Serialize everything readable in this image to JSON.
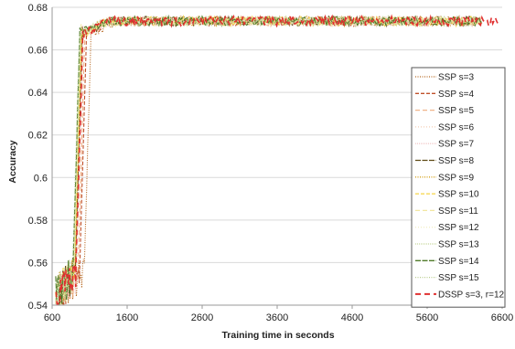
{
  "chart_data": {
    "type": "line",
    "title": "",
    "xlabel": "Training time in seconds",
    "ylabel": "Accuracy",
    "xlim": [
      600,
      6600
    ],
    "ylim": [
      0.54,
      0.68
    ],
    "xticks": [
      600,
      1600,
      2600,
      3600,
      4600,
      5600,
      6600
    ],
    "yticks": [
      0.54,
      0.56,
      0.58,
      0.6,
      0.62,
      0.64,
      0.66,
      0.68
    ],
    "xtick_labels": [
      "600",
      "1600",
      "2600",
      "3600",
      "4600",
      "5600",
      "6600"
    ],
    "ytick_labels": [
      "0.54",
      "0.56",
      "0.58",
      "0.6",
      "0.62",
      "0.64",
      "0.66",
      "0.68"
    ],
    "grid": "horizontal",
    "legend_position": "right",
    "plateau": 0.6735,
    "series": [
      {
        "name": "SSP s=3",
        "color": "#b5651d",
        "dash": "1,1.5",
        "rise_end": 1120,
        "end": 6300
      },
      {
        "name": "SSP s=4",
        "color": "#c0502a",
        "dash": "4,2",
        "rise_end": 1060,
        "end": 6320
      },
      {
        "name": "SSP s=5",
        "color": "#f0b48a",
        "dash": "5,3",
        "rise_end": 1040,
        "end": 6340
      },
      {
        "name": "SSP s=6",
        "color": "#f5cfb5",
        "dash": "1,2",
        "rise_end": 1020,
        "end": 6300
      },
      {
        "name": "SSP s=7",
        "color": "#f2c9c9",
        "dash": "1,1",
        "rise_end": 1010,
        "end": 6280
      },
      {
        "name": "SSP s=8",
        "color": "#5e4a14",
        "dash": "6,1.5",
        "rise_end": 1000,
        "end": 6330
      },
      {
        "name": "SSP s=9",
        "color": "#d4a017",
        "dash": "1,1.5",
        "rise_end": 995,
        "end": 6350
      },
      {
        "name": "SSP s=10",
        "color": "#f5d547",
        "dash": "4,2",
        "rise_end": 990,
        "end": 6310
      },
      {
        "name": "SSP s=11",
        "color": "#f2e6a0",
        "dash": "5,3",
        "rise_end": 985,
        "end": 6290
      },
      {
        "name": "SSP s=12",
        "color": "#f3f0c8",
        "dash": "1,2",
        "rise_end": 980,
        "end": 6300
      },
      {
        "name": "SSP s=13",
        "color": "#c6d89a",
        "dash": "1,1",
        "rise_end": 975,
        "end": 6320
      },
      {
        "name": "SSP s=14",
        "color": "#4f7a28",
        "dash": "6,1.5",
        "rise_end": 970,
        "end": 6340
      },
      {
        "name": "SSP s=15",
        "color": "#b9cc8e",
        "dash": "1,1.5",
        "rise_end": 965,
        "end": 6300
      },
      {
        "name": "DSSP s=3, r=12",
        "color": "#e03030",
        "dash": "6,4",
        "rise_end": 1010,
        "end": 6560
      }
    ]
  }
}
